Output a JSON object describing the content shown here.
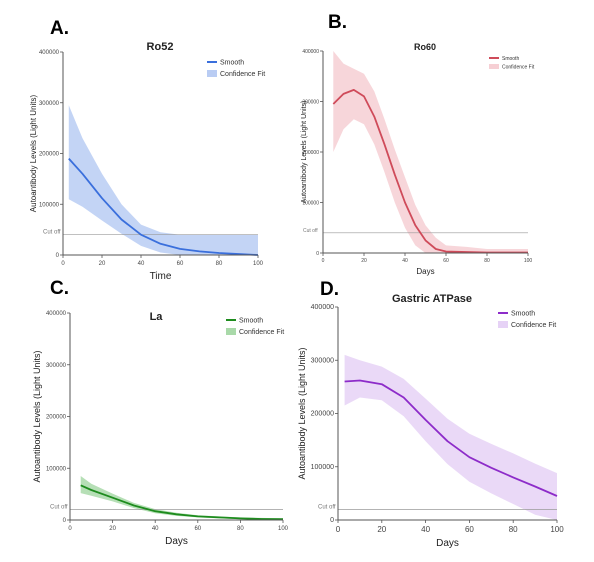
{
  "colors": {
    "ro52": "#3a6fdc",
    "ro52_band": "#b9ccf3",
    "ro60": "#cf4b5a",
    "ro60_band": "#f6cfd4",
    "la": "#1e8c1e",
    "la_band": "#a9d9a9",
    "gastric": "#8d2cc9",
    "gastric_band": "#e6d2f6",
    "axis": "#555555",
    "cutoff": "#9a9a9a"
  },
  "chart_data": [
    {
      "type": "line",
      "panel_label": "A.",
      "title": "Ro52",
      "xlabel": "Time",
      "ylabel": "Autoantibody Levels (Light Units)",
      "xlim": [
        0,
        100
      ],
      "ylim": [
        0,
        400000
      ],
      "xticks": [
        0,
        20,
        40,
        60,
        80,
        100
      ],
      "xtick_labels": [
        "0",
        "20",
        "40",
        "60",
        "80",
        "100"
      ],
      "yticks": [
        0,
        100000,
        200000,
        300000,
        400000
      ],
      "ytick_labels": [
        "0",
        "100000",
        "200000",
        "300000",
        "400000"
      ],
      "cutoff": 40000,
      "cutoff_label": "Cut off",
      "legend_position": "top-right",
      "series": [
        {
          "name": "Smooth",
          "color_key": "ro52",
          "x": [
            3,
            10,
            20,
            30,
            40,
            50,
            60,
            70,
            80,
            90,
            100
          ],
          "y": [
            190000,
            160000,
            112000,
            70000,
            40000,
            22000,
            12000,
            7000,
            4000,
            2000,
            0
          ],
          "lower": [
            110000,
            95000,
            68000,
            42000,
            18000,
            5000,
            0,
            0,
            0,
            0,
            0
          ],
          "upper": [
            295000,
            230000,
            160000,
            100000,
            60000,
            45000,
            40000,
            40000,
            40000,
            40000,
            40000
          ]
        }
      ],
      "band_name": "Confidence Fit"
    },
    {
      "type": "line",
      "panel_label": "B.",
      "title": "Ro60",
      "xlabel": "Days",
      "ylabel": "Autoantibody Levels (Light Units)",
      "xlim": [
        0,
        100
      ],
      "ylim": [
        0,
        400000
      ],
      "xticks": [
        0,
        20,
        40,
        60,
        80,
        100
      ],
      "xtick_labels": [
        "0",
        "20",
        "40",
        "60",
        "80",
        "100"
      ],
      "yticks": [
        0,
        100000,
        200000,
        300000,
        400000
      ],
      "ytick_labels": [
        "0",
        "100000",
        "200000",
        "300000",
        "400000"
      ],
      "cutoff": 40000,
      "cutoff_label": "Cut off",
      "legend_position": "top-right",
      "series": [
        {
          "name": "Smooth",
          "color_key": "ro60",
          "x": [
            5,
            10,
            15,
            20,
            25,
            30,
            35,
            40,
            45,
            50,
            55,
            60,
            70,
            80,
            90,
            100
          ],
          "y": [
            295000,
            315000,
            323000,
            310000,
            270000,
            215000,
            155000,
            100000,
            55000,
            25000,
            8000,
            3000,
            2000,
            1000,
            1000,
            1000
          ],
          "lower": [
            200000,
            245000,
            265000,
            255000,
            215000,
            160000,
            100000,
            50000,
            15000,
            0,
            0,
            0,
            0,
            0,
            0,
            0
          ],
          "upper": [
            400000,
            375000,
            365000,
            355000,
            320000,
            265000,
            205000,
            150000,
            95000,
            55000,
            30000,
            15000,
            12000,
            8000,
            8000,
            8000
          ]
        }
      ],
      "band_name": "Confidence Fit"
    },
    {
      "type": "line",
      "panel_label": "C.",
      "title": "La",
      "xlabel": "Days",
      "ylabel": "Autoantibody Levels (Light Units)",
      "xlim": [
        0,
        100
      ],
      "ylim": [
        0,
        400000
      ],
      "xticks": [
        0,
        20,
        40,
        60,
        80,
        100
      ],
      "xtick_labels": [
        "0",
        "20",
        "40",
        "60",
        "80",
        "100"
      ],
      "yticks": [
        0,
        100000,
        200000,
        300000,
        400000
      ],
      "ytick_labels": [
        "0",
        "100000",
        "200000",
        "300000",
        "400000"
      ],
      "cutoff": 20000,
      "cutoff_label": "Cut off",
      "legend_position": "top-right",
      "series": [
        {
          "name": "Smooth",
          "color_key": "la",
          "x": [
            5,
            10,
            20,
            30,
            40,
            50,
            60,
            70,
            80,
            90,
            100
          ],
          "y": [
            67000,
            58000,
            43000,
            28000,
            17000,
            11000,
            7000,
            5000,
            3000,
            2000,
            1500
          ],
          "lower": [
            52000,
            47000,
            36000,
            23000,
            13000,
            8000,
            5000,
            3000,
            2000,
            1000,
            500
          ],
          "upper": [
            85000,
            70000,
            51000,
            33000,
            21000,
            14000,
            9000,
            7000,
            5000,
            4000,
            3000
          ]
        }
      ],
      "band_name": "Confidence Fit"
    },
    {
      "type": "line",
      "panel_label": "D.",
      "title": "Gastric ATPase",
      "xlabel": "Days",
      "ylabel": "Autoantibody Levels (Light Units)",
      "xlim": [
        0,
        100
      ],
      "ylim": [
        0,
        400000
      ],
      "xticks": [
        0,
        20,
        40,
        60,
        80,
        100
      ],
      "xtick_labels": [
        "0",
        "20",
        "40",
        "60",
        "80",
        "100"
      ],
      "yticks": [
        0,
        100000,
        200000,
        300000,
        400000
      ],
      "ytick_labels": [
        "0",
        "100000",
        "200000",
        "300000",
        "400000"
      ],
      "cutoff": 20000,
      "cutoff_label": "Cut off",
      "legend_position": "top-right",
      "series": [
        {
          "name": "Smooth",
          "color_key": "gastric",
          "x": [
            3,
            10,
            20,
            30,
            40,
            50,
            60,
            70,
            80,
            90,
            100
          ],
          "y": [
            260000,
            262000,
            255000,
            230000,
            188000,
            148000,
            118000,
            98000,
            80000,
            63000,
            45000
          ],
          "lower": [
            215000,
            230000,
            225000,
            195000,
            148000,
            105000,
            72000,
            50000,
            30000,
            10000,
            0
          ],
          "upper": [
            310000,
            300000,
            288000,
            265000,
            228000,
            190000,
            162000,
            143000,
            125000,
            106000,
            88000
          ]
        }
      ],
      "band_name": "Confidence Fit"
    }
  ]
}
